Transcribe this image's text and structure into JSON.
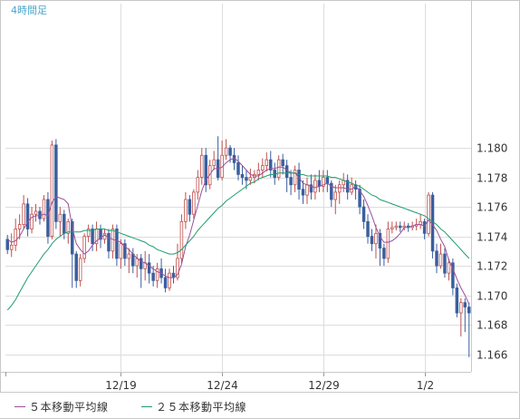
{
  "chart_data": {
    "type": "candlestick",
    "title": "4時間足",
    "ylim": [
      1.1648,
      1.1898
    ],
    "y_ticks": [
      "1.166",
      "1.168",
      "1.170",
      "1.172",
      "1.174",
      "1.176",
      "1.178",
      "1.180"
    ],
    "x_ticks": [
      {
        "label": "12/19",
        "index": 28
      },
      {
        "label": "12/24",
        "index": 53
      },
      {
        "label": "12/29",
        "index": 78
      },
      {
        "label": "1/2",
        "index": 103
      }
    ],
    "grid": true,
    "legend_position": "bottom",
    "colors": {
      "up_candle": "#c0504d",
      "down_candle": "#3a5f9e",
      "ma5": "#9b4f9b",
      "ma25": "#1e9c6e",
      "grid": "#dddddd",
      "title": "#4aa5c8",
      "axis_text": "#333333"
    },
    "candles": [
      [
        1.1738,
        1.1731,
        1.1741,
        1.1728
      ],
      [
        1.1731,
        1.1734,
        1.1742,
        1.1726
      ],
      [
        1.1734,
        1.1745,
        1.1752,
        1.173
      ],
      [
        1.1745,
        1.1748,
        1.1755,
        1.1738
      ],
      [
        1.1748,
        1.1762,
        1.1768,
        1.1745
      ],
      [
        1.1762,
        1.1745,
        1.1766,
        1.174
      ],
      [
        1.1745,
        1.1755,
        1.176,
        1.1742
      ],
      [
        1.1755,
        1.1757,
        1.1762,
        1.175
      ],
      [
        1.1757,
        1.1752,
        1.176,
        1.1748
      ],
      [
        1.1752,
        1.1765,
        1.1768,
        1.175
      ],
      [
        1.1765,
        1.174,
        1.177,
        1.1735
      ],
      [
        1.174,
        1.1802,
        1.1805,
        1.1738
      ],
      [
        1.1802,
        1.175,
        1.1806,
        1.1745
      ],
      [
        1.175,
        1.1755,
        1.176,
        1.174
      ],
      [
        1.1755,
        1.1742,
        1.1758,
        1.1738
      ],
      [
        1.1742,
        1.175,
        1.1752,
        1.1735
      ],
      [
        1.175,
        1.1728,
        1.1752,
        1.1705
      ],
      [
        1.1728,
        1.171,
        1.173,
        1.1705
      ],
      [
        1.171,
        1.1725,
        1.1728,
        1.1706
      ],
      [
        1.1725,
        1.174,
        1.1742,
        1.1722
      ],
      [
        1.174,
        1.1745,
        1.1748,
        1.1736
      ],
      [
        1.1745,
        1.1735,
        1.1748,
        1.173
      ],
      [
        1.1735,
        1.1745,
        1.175,
        1.173
      ],
      [
        1.1745,
        1.1738,
        1.1748,
        1.1732
      ],
      [
        1.1738,
        1.1742,
        1.1745,
        1.1735
      ],
      [
        1.1742,
        1.173,
        1.1745,
        1.1725
      ],
      [
        1.173,
        1.1745,
        1.1748,
        1.1725
      ],
      [
        1.1745,
        1.1725,
        1.1748,
        1.172
      ],
      [
        1.1725,
        1.1735,
        1.1738,
        1.1718
      ],
      [
        1.1735,
        1.1725,
        1.1738,
        1.172
      ],
      [
        1.1725,
        1.1728,
        1.1732,
        1.1715
      ],
      [
        1.1728,
        1.172,
        1.1732,
        1.1715
      ],
      [
        1.172,
        1.1725,
        1.1728,
        1.1712
      ],
      [
        1.1725,
        1.1718,
        1.1728,
        1.1705
      ],
      [
        1.1718,
        1.1722,
        1.173,
        1.171
      ],
      [
        1.1722,
        1.1715,
        1.1728,
        1.1708
      ],
      [
        1.1715,
        1.171,
        1.172,
        1.1706
      ],
      [
        1.171,
        1.1718,
        1.1722,
        1.1705
      ],
      [
        1.1718,
        1.1712,
        1.1725,
        1.1708
      ],
      [
        1.1712,
        1.1705,
        1.1718,
        1.1702
      ],
      [
        1.1705,
        1.1715,
        1.1718,
        1.1703
      ],
      [
        1.1715,
        1.1712,
        1.172,
        1.1708
      ],
      [
        1.1712,
        1.1725,
        1.1735,
        1.171
      ],
      [
        1.1725,
        1.175,
        1.1755,
        1.1722
      ],
      [
        1.175,
        1.1765,
        1.177,
        1.1745
      ],
      [
        1.1765,
        1.1755,
        1.1768,
        1.175
      ],
      [
        1.1755,
        1.177,
        1.1772,
        1.1752
      ],
      [
        1.177,
        1.178,
        1.1785,
        1.1765
      ],
      [
        1.178,
        1.1795,
        1.18,
        1.1775
      ],
      [
        1.1795,
        1.1775,
        1.18,
        1.177
      ],
      [
        1.1775,
        1.1788,
        1.1792,
        1.1772
      ],
      [
        1.1788,
        1.1792,
        1.1798,
        1.1785
      ],
      [
        1.1792,
        1.178,
        1.1808,
        1.1778
      ],
      [
        1.178,
        1.1795,
        1.1805,
        1.1778
      ],
      [
        1.1795,
        1.18,
        1.1806,
        1.1792
      ],
      [
        1.18,
        1.1795,
        1.1802,
        1.179
      ],
      [
        1.1795,
        1.179,
        1.18,
        1.1785
      ],
      [
        1.179,
        1.1782,
        1.1795,
        1.1778
      ],
      [
        1.1782,
        1.178,
        1.1788,
        1.1775
      ],
      [
        1.178,
        1.1778,
        1.1785,
        1.1772
      ],
      [
        1.1778,
        1.178,
        1.1786,
        1.1775
      ],
      [
        1.178,
        1.1782,
        1.1785,
        1.1776
      ],
      [
        1.1782,
        1.1785,
        1.179,
        1.1778
      ],
      [
        1.1785,
        1.1788,
        1.1793,
        1.178
      ],
      [
        1.1788,
        1.1792,
        1.1797,
        1.1784
      ],
      [
        1.1792,
        1.1785,
        1.1798,
        1.178
      ],
      [
        1.1785,
        1.178,
        1.179,
        1.1775
      ],
      [
        1.178,
        1.1792,
        1.1795,
        1.1778
      ],
      [
        1.1792,
        1.1788,
        1.1796,
        1.1782
      ],
      [
        1.1788,
        1.178,
        1.1792,
        1.177
      ],
      [
        1.178,
        1.1775,
        1.1785,
        1.1768
      ],
      [
        1.1775,
        1.1785,
        1.1788,
        1.177
      ],
      [
        1.1785,
        1.1772,
        1.179,
        1.1765
      ],
      [
        1.1772,
        1.1768,
        1.1778,
        1.1762
      ],
      [
        1.1768,
        1.1775,
        1.178,
        1.1762
      ],
      [
        1.1775,
        1.177,
        1.1782,
        1.1765
      ],
      [
        1.177,
        1.1778,
        1.1782,
        1.1765
      ],
      [
        1.1778,
        1.1774,
        1.1785,
        1.177
      ],
      [
        1.1774,
        1.178,
        1.1785,
        1.177
      ],
      [
        1.178,
        1.1776,
        1.1785,
        1.177
      ],
      [
        1.1776,
        1.1765,
        1.1778,
        1.176
      ],
      [
        1.1765,
        1.177,
        1.1775,
        1.1755
      ],
      [
        1.177,
        1.1775,
        1.1778,
        1.1762
      ],
      [
        1.1775,
        1.1778,
        1.1783,
        1.177
      ],
      [
        1.1778,
        1.177,
        1.1782,
        1.1765
      ],
      [
        1.177,
        1.1775,
        1.178,
        1.1768
      ],
      [
        1.1775,
        1.1772,
        1.1778,
        1.1765
      ],
      [
        1.1772,
        1.176,
        1.1775,
        1.1755
      ],
      [
        1.176,
        1.175,
        1.1765,
        1.1745
      ],
      [
        1.175,
        1.174,
        1.1755,
        1.1735
      ],
      [
        1.174,
        1.1735,
        1.1745,
        1.173
      ],
      [
        1.1735,
        1.1742,
        1.1748,
        1.1725
      ],
      [
        1.1742,
        1.1732,
        1.1745,
        1.172
      ],
      [
        1.1732,
        1.1725,
        1.1735,
        1.172
      ],
      [
        1.1725,
        1.1745,
        1.175,
        1.1722
      ],
      [
        1.1745,
        1.1746,
        1.175,
        1.1742
      ],
      [
        1.1746,
        1.1747,
        1.175,
        1.1744
      ],
      [
        1.1747,
        1.1746,
        1.175,
        1.1743
      ],
      [
        1.1746,
        1.1747,
        1.175,
        1.1744
      ],
      [
        1.1747,
        1.1746,
        1.1749,
        1.1743
      ],
      [
        1.1746,
        1.1747,
        1.175,
        1.1744
      ],
      [
        1.1747,
        1.1748,
        1.1752,
        1.1744
      ],
      [
        1.1748,
        1.175,
        1.1755,
        1.1745
      ],
      [
        1.175,
        1.1742,
        1.1752,
        1.1738
      ],
      [
        1.1742,
        1.1768,
        1.177,
        1.174
      ],
      [
        1.1768,
        1.173,
        1.177,
        1.1725
      ],
      [
        1.173,
        1.172,
        1.1735,
        1.1715
      ],
      [
        1.172,
        1.1728,
        1.1735,
        1.1718
      ],
      [
        1.1728,
        1.1715,
        1.1732,
        1.1712
      ],
      [
        1.1715,
        1.1722,
        1.1725,
        1.171
      ],
      [
        1.1722,
        1.1705,
        1.1725,
        1.17
      ],
      [
        1.1705,
        1.1688,
        1.1708,
        1.1685
      ],
      [
        1.1688,
        1.1695,
        1.1698,
        1.1672
      ],
      [
        1.1695,
        1.1692,
        1.1698,
        1.1675
      ],
      [
        1.1692,
        1.1688,
        1.1695,
        1.1658
      ]
    ],
    "series": [
      {
        "name": "５本移動平均線",
        "values": [
          1.1738,
          1.1736,
          1.1737,
          1.174,
          1.1745,
          1.175,
          1.1753,
          1.1754,
          1.1754,
          1.1755,
          1.1754,
          1.1763,
          1.1767,
          1.1766,
          1.1765,
          1.1762,
          1.1746,
          1.1735,
          1.1731,
          1.1728,
          1.173,
          1.1734,
          1.1737,
          1.1739,
          1.1741,
          1.1739,
          1.1738,
          1.1737,
          1.1736,
          1.1733,
          1.1731,
          1.1728,
          1.1725,
          1.1723,
          1.1722,
          1.172,
          1.1718,
          1.1716,
          1.1715,
          1.1713,
          1.1712,
          1.1712,
          1.1714,
          1.1721,
          1.1733,
          1.1741,
          1.1751,
          1.1761,
          1.1771,
          1.1778,
          1.1782,
          1.1786,
          1.1786,
          1.1787,
          1.179,
          1.1792,
          1.1793,
          1.1791,
          1.1788,
          1.1785,
          1.1782,
          1.1781,
          1.1781,
          1.1783,
          1.1785,
          1.1786,
          1.1786,
          1.1787,
          1.1787,
          1.1785,
          1.1783,
          1.1783,
          1.178,
          1.1776,
          1.1775,
          1.1774,
          1.1773,
          1.1774,
          1.1775,
          1.1776,
          1.1774,
          1.1773,
          1.1773,
          1.1773,
          1.1772,
          1.1772,
          1.1774,
          1.1771,
          1.1767,
          1.1761,
          1.1754,
          1.1746,
          1.174,
          1.1736,
          1.1736,
          1.1737,
          1.1739,
          1.1742,
          1.1746,
          1.1746,
          1.1747,
          1.1748,
          1.1748,
          1.1747,
          1.1751,
          1.1748,
          1.1744,
          1.1738,
          1.1733,
          1.1724,
          1.1718,
          1.1711,
          1.1705,
          1.17,
          1.1694
        ]
      },
      {
        "name": "２５本移動平均線",
        "values": [
          1.169,
          1.1693,
          1.1697,
          1.1702,
          1.1707,
          1.1712,
          1.1716,
          1.172,
          1.1724,
          1.1728,
          1.1731,
          1.1735,
          1.1738,
          1.174,
          1.1742,
          1.1743,
          1.1743,
          1.1743,
          1.1743,
          1.1744,
          1.1744,
          1.1744,
          1.1745,
          1.1745,
          1.1745,
          1.1744,
          1.1744,
          1.1743,
          1.1742,
          1.1741,
          1.174,
          1.1739,
          1.1738,
          1.1737,
          1.1736,
          1.1734,
          1.1733,
          1.1731,
          1.173,
          1.1729,
          1.1728,
          1.1728,
          1.1729,
          1.1731,
          1.1734,
          1.1737,
          1.174,
          1.1744,
          1.1747,
          1.175,
          1.1753,
          1.1756,
          1.1759,
          1.1761,
          1.1764,
          1.1766,
          1.1768,
          1.177,
          1.1772,
          1.1774,
          1.1776,
          1.1777,
          1.1779,
          1.178,
          1.1781,
          1.1782,
          1.1782,
          1.1783,
          1.1783,
          1.1783,
          1.1783,
          1.1783,
          1.1782,
          1.1782,
          1.1781,
          1.1781,
          1.1781,
          1.1781,
          1.1781,
          1.1781,
          1.178,
          1.178,
          1.1779,
          1.1778,
          1.1777,
          1.1776,
          1.1775,
          1.1774,
          1.1772,
          1.177,
          1.1768,
          1.1767,
          1.1765,
          1.1764,
          1.1763,
          1.1762,
          1.1761,
          1.176,
          1.1759,
          1.1758,
          1.1757,
          1.1756,
          1.1755,
          1.1754,
          1.1752,
          1.175,
          1.1748,
          1.1745,
          1.1743,
          1.174,
          1.1737,
          1.1734,
          1.1731,
          1.1728,
          1.1725
        ]
      }
    ]
  }
}
